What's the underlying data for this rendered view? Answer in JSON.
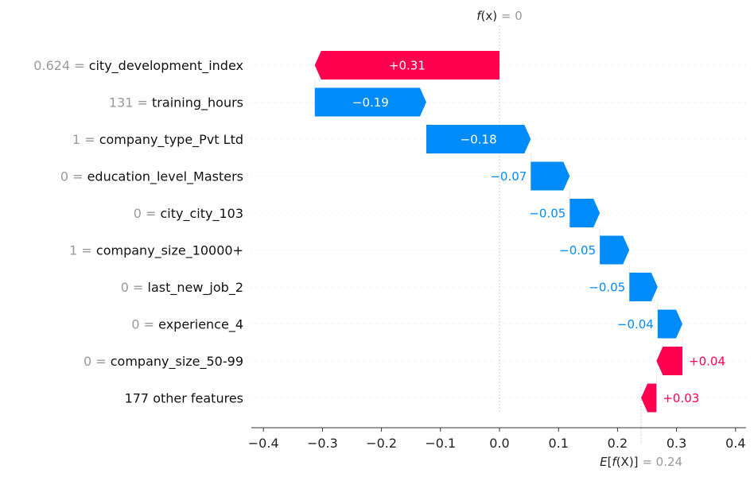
{
  "chart_data": {
    "type": "bar",
    "fx_label": "f(x)",
    "fx_value": "0",
    "ex_label": "E[f(X)]",
    "ex_value": "0.24",
    "base_value": 0.24,
    "final_value": 0,
    "xlim": [
      -0.42,
      0.42
    ],
    "x_ticks": [
      {
        "value": -0.4,
        "label": "−0.4"
      },
      {
        "value": -0.3,
        "label": "−0.3"
      },
      {
        "value": -0.2,
        "label": "−0.2"
      },
      {
        "value": -0.1,
        "label": "−0.1"
      },
      {
        "value": 0.0,
        "label": "0.0"
      },
      {
        "value": 0.1,
        "label": "0.1"
      },
      {
        "value": 0.2,
        "label": "0.2"
      },
      {
        "value": 0.3,
        "label": "0.3"
      },
      {
        "value": 0.4,
        "label": "0.4"
      }
    ],
    "colors": {
      "positive": "#ff0051",
      "negative": "#008bfb"
    },
    "features": [
      {
        "value": "0.624",
        "name": "city_development_index",
        "start": 0.0,
        "end": -0.313,
        "label": "+0.31",
        "sign": "positive"
      },
      {
        "value": "131",
        "name": "training_hours",
        "start": -0.313,
        "end": -0.124,
        "label": "−0.19",
        "sign": "negative"
      },
      {
        "value": "1",
        "name": "company_type_Pvt Ltd",
        "start": -0.124,
        "end": 0.053,
        "label": "−0.18",
        "sign": "negative"
      },
      {
        "value": "0",
        "name": "education_level_Masters",
        "start": 0.053,
        "end": 0.119,
        "label": "−0.07",
        "sign": "negative"
      },
      {
        "value": "0",
        "name": "city_city_103",
        "start": 0.119,
        "end": 0.17,
        "label": "−0.05",
        "sign": "negative"
      },
      {
        "value": "1",
        "name": "company_size_10000+",
        "start": 0.17,
        "end": 0.22,
        "label": "−0.05",
        "sign": "negative"
      },
      {
        "value": "0",
        "name": "last_new_job_2",
        "start": 0.22,
        "end": 0.268,
        "label": "−0.05",
        "sign": "negative"
      },
      {
        "value": "0",
        "name": "experience_4",
        "start": 0.268,
        "end": 0.31,
        "label": "−0.04",
        "sign": "negative"
      },
      {
        "value": "0",
        "name": "company_size_50-99",
        "start": 0.31,
        "end": 0.266,
        "label": "+0.04",
        "sign": "positive"
      },
      {
        "value": "",
        "name": "177 other features",
        "start": 0.266,
        "end": 0.24,
        "label": "+0.03",
        "sign": "positive"
      }
    ]
  }
}
